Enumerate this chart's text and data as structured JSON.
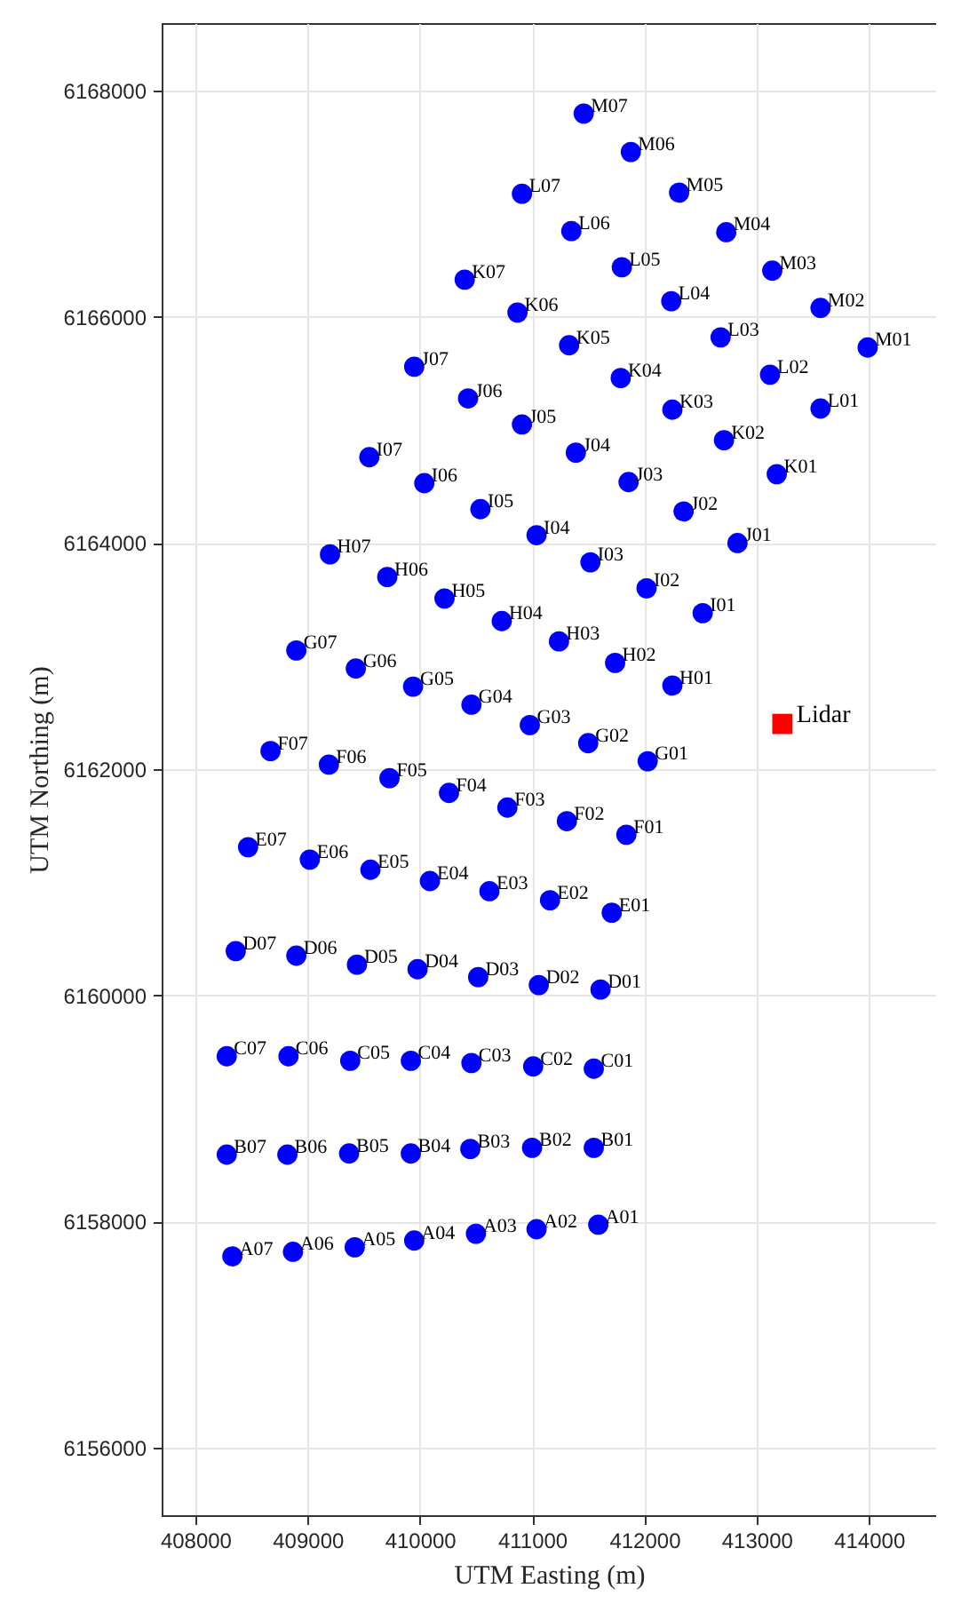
{
  "chart_data": {
    "type": "scatter",
    "xlabel": "UTM Easting (m)",
    "ylabel": "UTM Northing (m)",
    "xlim": [
      407700,
      414600
    ],
    "ylim": [
      6155400,
      6168600
    ],
    "xticks": [
      408000,
      409000,
      410000,
      411000,
      412000,
      413000,
      414000
    ],
    "yticks": [
      6156000,
      6158000,
      6160000,
      6162000,
      6164000,
      6166000,
      6168000
    ],
    "grid": true,
    "series": [
      {
        "color": "#0000ff",
        "marker": "circle",
        "x": [
          411460,
          411880,
          410910,
          412310,
          411350,
          412730,
          411800,
          413140,
          410400,
          412240,
          413570,
          410870,
          411330,
          412680,
          413990,
          409950,
          411790,
          413120,
          410430,
          412250,
          413570,
          410910,
          412710,
          409550,
          411390,
          413180,
          410040,
          411860,
          410540,
          412350,
          411040,
          412830,
          409200,
          411520,
          409710,
          412020,
          410220,
          412520,
          410730,
          411240,
          408900,
          411740,
          409430,
          412250,
          409940,
          410460,
          410980,
          411500,
          408670,
          412030,
          409190,
          409730,
          410260,
          410780,
          411310,
          411840,
          408470,
          409020,
          409560,
          410090,
          410620,
          411160,
          411710,
          408360,
          408900,
          409440,
          409980,
          410520,
          411060,
          411610,
          408280,
          408830,
          409380,
          409920,
          410460,
          411010,
          411550,
          408280,
          408820,
          409370,
          409920,
          410450,
          411000,
          411550,
          408330,
          408870,
          409420,
          409950,
          410500,
          411040,
          411590
        ],
        "values": [
          6167800,
          6167460,
          6167090,
          6167100,
          6166760,
          6166750,
          6166440,
          6166410,
          6166330,
          6166140,
          6166080,
          6166040,
          6165750,
          6165820,
          6165730,
          6165560,
          6165460,
          6165490,
          6165280,
          6165180,
          6165190,
          6165050,
          6164910,
          6164760,
          6164800,
          6164610,
          6164530,
          6164540,
          6164300,
          6164280,
          6164070,
          6164000,
          6163900,
          6163830,
          6163700,
          6163600,
          6163510,
          6163380,
          6163310,
          6163130,
          6163050,
          6162940,
          6162890,
          6162740,
          6162730,
          6162570,
          6162390,
          6162230,
          6162160,
          6162070,
          6162040,
          6161920,
          6161790,
          6161660,
          6161540,
          6161420,
          6161310,
          6161200,
          6161110,
          6161010,
          6160920,
          6160840,
          6160730,
          6160390,
          6160350,
          6160270,
          6160230,
          6160160,
          6160090,
          6160050,
          6159460,
          6159460,
          6159420,
          6159420,
          6159400,
          6159370,
          6159350,
          6158590,
          6158590,
          6158600,
          6158600,
          6158640,
          6158650,
          6158650,
          6157690,
          6157730,
          6157770,
          6157830,
          6157890,
          6157930,
          6157970
        ]
      },
      {
        "name": "Lidar",
        "color": "#ff0000",
        "marker": "square",
        "x": [
          413230
        ],
        "values": [
          6162400
        ]
      }
    ],
    "annotations": [
      {
        "text": "M07",
        "x": 411460,
        "y": 6167800
      },
      {
        "text": "M06",
        "x": 411880,
        "y": 6167460
      },
      {
        "text": "L07",
        "x": 410910,
        "y": 6167090
      },
      {
        "text": "M05",
        "x": 412310,
        "y": 6167100
      },
      {
        "text": "L06",
        "x": 411350,
        "y": 6166760
      },
      {
        "text": "M04",
        "x": 412730,
        "y": 6166750
      },
      {
        "text": "L05",
        "x": 411800,
        "y": 6166440
      },
      {
        "text": "M03",
        "x": 413140,
        "y": 6166410
      },
      {
        "text": "K07",
        "x": 410400,
        "y": 6166330
      },
      {
        "text": "L04",
        "x": 412240,
        "y": 6166140
      },
      {
        "text": "M02",
        "x": 413570,
        "y": 6166080
      },
      {
        "text": "K06",
        "x": 410870,
        "y": 6166040
      },
      {
        "text": "K05",
        "x": 411330,
        "y": 6165750
      },
      {
        "text": "L03",
        "x": 412680,
        "y": 6165820
      },
      {
        "text": "M01",
        "x": 413990,
        "y": 6165730
      },
      {
        "text": "J07",
        "x": 409950,
        "y": 6165560
      },
      {
        "text": "K04",
        "x": 411790,
        "y": 6165460
      },
      {
        "text": "L02",
        "x": 413120,
        "y": 6165490
      },
      {
        "text": "J06",
        "x": 410430,
        "y": 6165280
      },
      {
        "text": "K03",
        "x": 412250,
        "y": 6165180
      },
      {
        "text": "L01",
        "x": 413570,
        "y": 6165190
      },
      {
        "text": "J05",
        "x": 410910,
        "y": 6165050
      },
      {
        "text": "K02",
        "x": 412710,
        "y": 6164910
      },
      {
        "text": "I07",
        "x": 409550,
        "y": 6164760
      },
      {
        "text": "J04",
        "x": 411390,
        "y": 6164800
      },
      {
        "text": "K01",
        "x": 413180,
        "y": 6164610
      },
      {
        "text": "I06",
        "x": 410040,
        "y": 6164530
      },
      {
        "text": "J03",
        "x": 411860,
        "y": 6164540
      },
      {
        "text": "I05",
        "x": 410540,
        "y": 6164300
      },
      {
        "text": "J02",
        "x": 412350,
        "y": 6164280
      },
      {
        "text": "I04",
        "x": 411040,
        "y": 6164070
      },
      {
        "text": "J01",
        "x": 412830,
        "y": 6164000
      },
      {
        "text": "H07",
        "x": 409200,
        "y": 6163900
      },
      {
        "text": "I03",
        "x": 411520,
        "y": 6163830
      },
      {
        "text": "H06",
        "x": 409710,
        "y": 6163700
      },
      {
        "text": "I02",
        "x": 412020,
        "y": 6163600
      },
      {
        "text": "H05",
        "x": 410220,
        "y": 6163510
      },
      {
        "text": "I01",
        "x": 412520,
        "y": 6163380
      },
      {
        "text": "H04",
        "x": 410730,
        "y": 6163310
      },
      {
        "text": "H03",
        "x": 411240,
        "y": 6163130
      },
      {
        "text": "G07",
        "x": 408900,
        "y": 6163050
      },
      {
        "text": "H02",
        "x": 411740,
        "y": 6162940
      },
      {
        "text": "G06",
        "x": 409430,
        "y": 6162890
      },
      {
        "text": "H01",
        "x": 412250,
        "y": 6162740
      },
      {
        "text": "G05",
        "x": 409940,
        "y": 6162730
      },
      {
        "text": "G04",
        "x": 410460,
        "y": 6162570
      },
      {
        "text": "G03",
        "x": 410980,
        "y": 6162390
      },
      {
        "text": "G02",
        "x": 411500,
        "y": 6162230
      },
      {
        "text": "F07",
        "x": 408670,
        "y": 6162160
      },
      {
        "text": "G01",
        "x": 412030,
        "y": 6162070
      },
      {
        "text": "F06",
        "x": 409190,
        "y": 6162040
      },
      {
        "text": "F05",
        "x": 409730,
        "y": 6161920
      },
      {
        "text": "F04",
        "x": 410260,
        "y": 6161790
      },
      {
        "text": "F03",
        "x": 410780,
        "y": 6161660
      },
      {
        "text": "F02",
        "x": 411310,
        "y": 6161540
      },
      {
        "text": "F01",
        "x": 411840,
        "y": 6161420
      },
      {
        "text": "E07",
        "x": 408470,
        "y": 6161310
      },
      {
        "text": "E06",
        "x": 409020,
        "y": 6161200
      },
      {
        "text": "E05",
        "x": 409560,
        "y": 6161110
      },
      {
        "text": "E04",
        "x": 410090,
        "y": 6161010
      },
      {
        "text": "E03",
        "x": 410620,
        "y": 6160920
      },
      {
        "text": "E02",
        "x": 411160,
        "y": 6160840
      },
      {
        "text": "E01",
        "x": 411710,
        "y": 6160730
      },
      {
        "text": "D07",
        "x": 408360,
        "y": 6160390
      },
      {
        "text": "D06",
        "x": 408900,
        "y": 6160350
      },
      {
        "text": "D05",
        "x": 409440,
        "y": 6160270
      },
      {
        "text": "D04",
        "x": 409980,
        "y": 6160230
      },
      {
        "text": "D03",
        "x": 410520,
        "y": 6160160
      },
      {
        "text": "D02",
        "x": 411060,
        "y": 6160090
      },
      {
        "text": "D01",
        "x": 411610,
        "y": 6160050
      },
      {
        "text": "C07",
        "x": 408280,
        "y": 6159460
      },
      {
        "text": "C06",
        "x": 408830,
        "y": 6159460
      },
      {
        "text": "C05",
        "x": 409380,
        "y": 6159420
      },
      {
        "text": "C04",
        "x": 409920,
        "y": 6159420
      },
      {
        "text": "C03",
        "x": 410460,
        "y": 6159400
      },
      {
        "text": "C02",
        "x": 411010,
        "y": 6159370
      },
      {
        "text": "C01",
        "x": 411550,
        "y": 6159350
      },
      {
        "text": "B07",
        "x": 408280,
        "y": 6158590
      },
      {
        "text": "B06",
        "x": 408820,
        "y": 6158590
      },
      {
        "text": "B05",
        "x": 409370,
        "y": 6158600
      },
      {
        "text": "B04",
        "x": 409920,
        "y": 6158600
      },
      {
        "text": "B03",
        "x": 410450,
        "y": 6158640
      },
      {
        "text": "B02",
        "x": 411000,
        "y": 6158650
      },
      {
        "text": "B01",
        "x": 411550,
        "y": 6158650
      },
      {
        "text": "A07",
        "x": 408330,
        "y": 6157690
      },
      {
        "text": "A06",
        "x": 408870,
        "y": 6157730
      },
      {
        "text": "A05",
        "x": 409420,
        "y": 6157770
      },
      {
        "text": "A04",
        "x": 409950,
        "y": 6157830
      },
      {
        "text": "A03",
        "x": 410500,
        "y": 6157890
      },
      {
        "text": "A02",
        "x": 411040,
        "y": 6157930
      },
      {
        "text": "A01",
        "x": 411590,
        "y": 6157970
      }
    ]
  }
}
